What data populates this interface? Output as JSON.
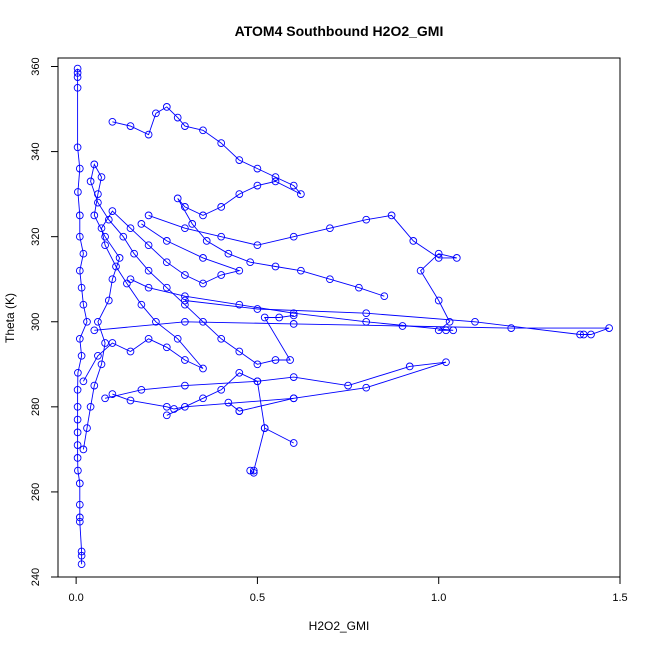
{
  "chart_data": {
    "type": "scatter",
    "title": "ATOM4 Southbound H2O2_GMI",
    "xlabel": "H2O2_GMI",
    "ylabel": "Theta (K)",
    "xlim": [
      -0.05,
      1.5
    ],
    "ylim": [
      240,
      362
    ],
    "x_ticks": [
      0.0,
      0.5,
      1.0,
      1.5
    ],
    "x_tick_labels": [
      "0.0",
      "0.5",
      "1.0",
      "1.5"
    ],
    "y_ticks": [
      240,
      260,
      280,
      300,
      320,
      340,
      360
    ],
    "y_tick_labels": [
      "240",
      "260",
      "280",
      "300",
      "320",
      "340",
      "360"
    ],
    "grid": false,
    "legend": "none",
    "series_style": "points connected by lines (open circles)",
    "color": "#0000ff",
    "series": [
      {
        "points": [
          [
            0.004,
            359.5
          ],
          [
            0.004,
            358.5
          ],
          [
            0.004,
            357.5
          ],
          [
            0.004,
            355.0
          ],
          [
            0.004,
            341.0
          ],
          [
            0.01,
            336.0
          ],
          [
            0.005,
            330.5
          ],
          [
            0.01,
            325.0
          ],
          [
            0.01,
            320.0
          ],
          [
            0.02,
            316.0
          ],
          [
            0.01,
            312.0
          ],
          [
            0.015,
            308.0
          ],
          [
            0.02,
            304.0
          ],
          [
            0.03,
            300.0
          ],
          [
            0.01,
            296.0
          ],
          [
            0.015,
            292.0
          ],
          [
            0.005,
            288.0
          ],
          [
            0.004,
            284.0
          ],
          [
            0.004,
            280.0
          ],
          [
            0.004,
            277.0
          ],
          [
            0.004,
            274.0
          ],
          [
            0.004,
            271.0
          ],
          [
            0.004,
            268.0
          ],
          [
            0.005,
            265.0
          ],
          [
            0.01,
            262.0
          ],
          [
            0.01,
            257.0
          ],
          [
            0.01,
            254.0
          ],
          [
            0.01,
            253.0
          ],
          [
            0.015,
            246.0
          ],
          [
            0.015,
            245.0
          ],
          [
            0.015,
            243.0
          ]
        ]
      },
      {
        "points": [
          [
            0.02,
            270.0
          ],
          [
            0.03,
            275.0
          ],
          [
            0.04,
            280.0
          ],
          [
            0.05,
            285.0
          ],
          [
            0.07,
            290.0
          ],
          [
            0.08,
            295.0
          ],
          [
            0.06,
            300.0
          ],
          [
            0.09,
            305.0
          ],
          [
            0.1,
            310.0
          ],
          [
            0.12,
            315.0
          ],
          [
            0.08,
            320.0
          ],
          [
            0.05,
            325.0
          ],
          [
            0.06,
            330.0
          ],
          [
            0.07,
            334.0
          ],
          [
            0.05,
            337.0
          ],
          [
            0.04,
            333.0
          ],
          [
            0.06,
            328.0
          ],
          [
            0.09,
            324.0
          ],
          [
            0.13,
            320.0
          ],
          [
            0.16,
            316.0
          ],
          [
            0.2,
            312.0
          ],
          [
            0.25,
            308.0
          ],
          [
            0.3,
            304.0
          ],
          [
            0.35,
            300.0
          ],
          [
            0.4,
            296.0
          ],
          [
            0.45,
            293.0
          ],
          [
            0.5,
            290.0
          ],
          [
            0.55,
            291.0
          ],
          [
            0.59,
            291.0
          ],
          [
            0.52,
            301.0
          ],
          [
            0.56,
            301.0
          ],
          [
            0.6,
            301.5
          ]
        ]
      },
      {
        "points": [
          [
            0.1,
            347.0
          ],
          [
            0.15,
            346.0
          ],
          [
            0.2,
            344.0
          ],
          [
            0.22,
            349.0
          ],
          [
            0.25,
            350.5
          ],
          [
            0.28,
            348.0
          ],
          [
            0.3,
            346.0
          ],
          [
            0.35,
            345.0
          ],
          [
            0.4,
            342.0
          ],
          [
            0.45,
            338.0
          ],
          [
            0.5,
            336.0
          ],
          [
            0.55,
            334.0
          ],
          [
            0.6,
            332.0
          ],
          [
            0.62,
            330.0
          ],
          [
            0.55,
            333.0
          ],
          [
            0.5,
            332.0
          ],
          [
            0.45,
            330.0
          ],
          [
            0.4,
            327.0
          ],
          [
            0.35,
            325.0
          ],
          [
            0.3,
            327.0
          ],
          [
            0.28,
            329.0
          ],
          [
            0.32,
            323.0
          ],
          [
            0.36,
            319.0
          ],
          [
            0.42,
            316.0
          ],
          [
            0.48,
            314.0
          ],
          [
            0.55,
            313.0
          ],
          [
            0.62,
            312.0
          ],
          [
            0.7,
            310.0
          ],
          [
            0.78,
            308.0
          ],
          [
            0.85,
            306.0
          ]
        ]
      },
      {
        "points": [
          [
            0.2,
            325.0
          ],
          [
            0.3,
            322.0
          ],
          [
            0.4,
            320.0
          ],
          [
            0.5,
            318.0
          ],
          [
            0.6,
            320.0
          ],
          [
            0.7,
            322.0
          ],
          [
            0.8,
            324.0
          ],
          [
            0.87,
            325.0
          ],
          [
            0.93,
            319.0
          ],
          [
            1.0,
            315.0
          ],
          [
            1.05,
            315.0
          ],
          [
            1.0,
            316.0
          ],
          [
            0.95,
            312.0
          ],
          [
            1.0,
            305.0
          ],
          [
            1.03,
            300.0
          ],
          [
            1.0,
            298.0
          ],
          [
            1.02,
            298.0
          ],
          [
            1.04,
            298.0
          ],
          [
            0.8,
            300.0
          ],
          [
            0.6,
            302.0
          ],
          [
            0.45,
            304.0
          ],
          [
            0.3,
            306.0
          ],
          [
            0.2,
            308.0
          ],
          [
            0.15,
            310.0
          ]
        ]
      },
      {
        "points": [
          [
            0.05,
            298.0
          ],
          [
            0.3,
            300.0
          ],
          [
            0.6,
            299.5
          ],
          [
            0.9,
            299.0
          ],
          [
            1.2,
            298.5
          ],
          [
            1.47,
            298.5
          ],
          [
            1.42,
            297.0
          ],
          [
            1.4,
            297.0
          ],
          [
            1.39,
            297.0
          ],
          [
            1.1,
            300.0
          ],
          [
            0.8,
            302.0
          ],
          [
            0.5,
            303.0
          ],
          [
            0.3,
            305.0
          ]
        ]
      },
      {
        "points": [
          [
            0.08,
            282.0
          ],
          [
            0.18,
            284.0
          ],
          [
            0.3,
            285.0
          ],
          [
            0.5,
            286.0
          ],
          [
            0.6,
            287.0
          ],
          [
            0.75,
            285.0
          ],
          [
            0.92,
            289.5
          ],
          [
            1.02,
            290.5
          ],
          [
            0.8,
            284.5
          ],
          [
            0.6,
            282.0
          ],
          [
            0.45,
            279.0
          ],
          [
            0.42,
            281.0
          ],
          [
            0.45,
            279.0
          ],
          [
            0.6,
            282.0
          ],
          [
            0.3,
            280.0
          ],
          [
            0.27,
            279.5
          ],
          [
            0.25,
            280.0
          ],
          [
            0.15,
            281.5
          ],
          [
            0.1,
            283.0
          ]
        ]
      },
      {
        "points": [
          [
            0.25,
            278.0
          ],
          [
            0.35,
            282.0
          ],
          [
            0.4,
            284.0
          ],
          [
            0.45,
            288.0
          ],
          [
            0.5,
            286.0
          ],
          [
            0.52,
            275.0
          ],
          [
            0.6,
            271.5
          ],
          [
            0.52,
            275.0
          ],
          [
            0.49,
            265.0
          ],
          [
            0.49,
            264.5
          ],
          [
            0.48,
            265.0
          ]
        ]
      },
      {
        "points": [
          [
            0.02,
            286.0
          ],
          [
            0.06,
            292.0
          ],
          [
            0.1,
            295.0
          ],
          [
            0.15,
            293.0
          ],
          [
            0.2,
            296.0
          ],
          [
            0.25,
            294.0
          ],
          [
            0.3,
            291.0
          ],
          [
            0.35,
            289.0
          ],
          [
            0.28,
            296.0
          ],
          [
            0.22,
            300.0
          ],
          [
            0.18,
            304.0
          ],
          [
            0.14,
            309.0
          ],
          [
            0.11,
            313.0
          ],
          [
            0.08,
            318.0
          ],
          [
            0.07,
            322.0
          ],
          [
            0.1,
            326.0
          ],
          [
            0.15,
            322.0
          ],
          [
            0.2,
            318.0
          ],
          [
            0.25,
            314.0
          ],
          [
            0.3,
            311.0
          ],
          [
            0.35,
            309.0
          ],
          [
            0.4,
            311.0
          ],
          [
            0.45,
            312.0
          ],
          [
            0.35,
            315.0
          ],
          [
            0.25,
            319.0
          ],
          [
            0.18,
            323.0
          ]
        ]
      }
    ]
  }
}
